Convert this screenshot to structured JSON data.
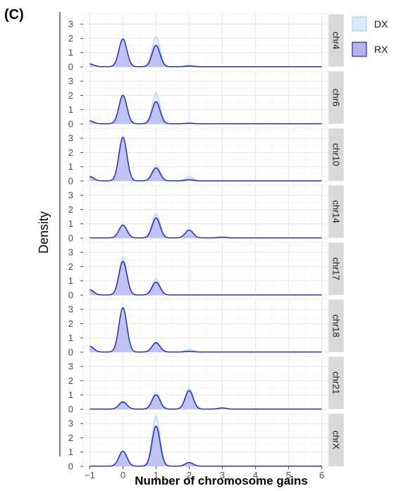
{
  "panel_label": "(C)",
  "chart_data": {
    "type": "area",
    "ylabel": "Density",
    "xlabel": "Number of chromosome gains",
    "xlim": [
      -1.2,
      6.2
    ],
    "ylim": [
      0,
      3.7
    ],
    "x_ticks": [
      -1,
      0,
      1,
      2,
      3,
      4,
      5,
      6
    ],
    "y_ticks": [
      0,
      1,
      2,
      3
    ],
    "grid": true,
    "legend_position": "top-right",
    "series_styles": [
      {
        "name": "DX",
        "fill": "#d6ecfb",
        "line": "#a9d3f2"
      },
      {
        "name": "RX",
        "fill": "#b3b6f2",
        "line": "#1f1fd6"
      }
    ],
    "facets": [
      {
        "label": "chr4",
        "DX": [
          {
            "x": -1,
            "h": 0.18
          },
          {
            "x": 0,
            "h": 1.9
          },
          {
            "x": 1,
            "h": 2.1
          },
          {
            "x": 2,
            "h": 0.12
          }
        ],
        "RX": [
          {
            "x": -1,
            "h": 0.2
          },
          {
            "x": 0,
            "h": 1.95
          },
          {
            "x": 1,
            "h": 1.5
          },
          {
            "x": 2,
            "h": 0.05
          }
        ]
      },
      {
        "label": "chr6",
        "DX": [
          {
            "x": -1,
            "h": 0.18
          },
          {
            "x": 0,
            "h": 1.9
          },
          {
            "x": 1,
            "h": 2.15
          },
          {
            "x": 2,
            "h": 0.08
          }
        ],
        "RX": [
          {
            "x": -1,
            "h": 0.2
          },
          {
            "x": 0,
            "h": 2.0
          },
          {
            "x": 1,
            "h": 1.55
          },
          {
            "x": 2,
            "h": 0.03
          }
        ]
      },
      {
        "label": "chr10",
        "DX": [
          {
            "x": -1,
            "h": 0.25
          },
          {
            "x": 0,
            "h": 2.6
          },
          {
            "x": 1,
            "h": 1.1
          },
          {
            "x": 2,
            "h": 0.28
          }
        ],
        "RX": [
          {
            "x": -1,
            "h": 0.3
          },
          {
            "x": 0,
            "h": 3.05
          },
          {
            "x": 1,
            "h": 0.9
          },
          {
            "x": 2,
            "h": 0.08
          }
        ]
      },
      {
        "label": "chr14",
        "DX": [
          {
            "x": 0,
            "h": 0.85
          },
          {
            "x": 1,
            "h": 1.7
          },
          {
            "x": 2,
            "h": 0.55
          },
          {
            "x": 3,
            "h": 0.06
          }
        ],
        "RX": [
          {
            "x": 0,
            "h": 0.9
          },
          {
            "x": 1,
            "h": 1.4
          },
          {
            "x": 2,
            "h": 0.55
          },
          {
            "x": 3,
            "h": 0.05
          }
        ]
      },
      {
        "label": "chr17",
        "DX": [
          {
            "x": -1,
            "h": 0.4
          },
          {
            "x": 0,
            "h": 2.6
          },
          {
            "x": 1,
            "h": 1.1
          }
        ],
        "RX": [
          {
            "x": -1,
            "h": 0.35
          },
          {
            "x": 0,
            "h": 2.35
          },
          {
            "x": 1,
            "h": 0.9
          }
        ]
      },
      {
        "label": "chr18",
        "DX": [
          {
            "x": -1,
            "h": 0.35
          },
          {
            "x": 0,
            "h": 2.4
          },
          {
            "x": 1,
            "h": 0.7
          },
          {
            "x": 2,
            "h": 0.2
          }
        ],
        "RX": [
          {
            "x": -1,
            "h": 0.4
          },
          {
            "x": 0,
            "h": 3.1
          },
          {
            "x": 1,
            "h": 0.65
          },
          {
            "x": 2,
            "h": 0.05
          }
        ]
      },
      {
        "label": "chr21",
        "DX": [
          {
            "x": 0,
            "h": 0.55
          },
          {
            "x": 1,
            "h": 1.15
          },
          {
            "x": 2,
            "h": 1.45
          },
          {
            "x": 3,
            "h": 0.1
          }
        ],
        "RX": [
          {
            "x": 0,
            "h": 0.5
          },
          {
            "x": 1,
            "h": 1.0
          },
          {
            "x": 2,
            "h": 1.3
          },
          {
            "x": 3,
            "h": 0.08
          }
        ]
      },
      {
        "label": "chrX",
        "DX": [
          {
            "x": 0,
            "h": 1.0
          },
          {
            "x": 1,
            "h": 3.5
          },
          {
            "x": 2,
            "h": 0.15
          }
        ],
        "RX": [
          {
            "x": 0,
            "h": 1.05
          },
          {
            "x": 1,
            "h": 2.8
          },
          {
            "x": 2,
            "h": 0.25
          }
        ]
      }
    ]
  }
}
